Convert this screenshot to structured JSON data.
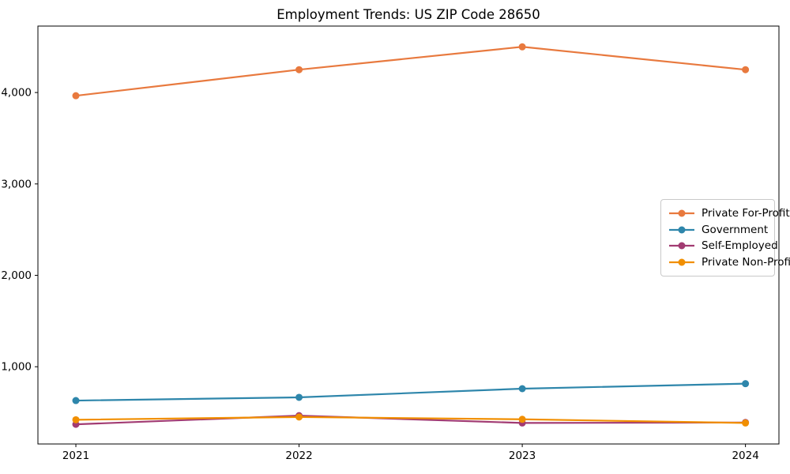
{
  "title": "Employment Trends: US ZIP Code 28650",
  "chart_data": {
    "type": "line",
    "title": "Employment Trends: US ZIP Code 28650",
    "xlabel": "",
    "ylabel": "",
    "x": [
      2021,
      2022,
      2023,
      2024
    ],
    "x_tick_labels": [
      "2021",
      "2022",
      "2023",
      "2024"
    ],
    "y_tick_values": [
      1000,
      2000,
      3000,
      4000
    ],
    "y_tick_labels": [
      "1,000",
      "2,000",
      "3,000",
      "4,000"
    ],
    "xlim": [
      2020.83,
      2024.15
    ],
    "ylim": [
      155,
      4727
    ],
    "grid": false,
    "legend_position": "center-right",
    "series": [
      {
        "name": "Private For-Profit",
        "color": "#e8793e",
        "values": [
          3965,
          4250,
          4500,
          4250
        ]
      },
      {
        "name": "Government",
        "color": "#2e86ab",
        "values": [
          630,
          665,
          760,
          815
        ]
      },
      {
        "name": "Self-Employed",
        "color": "#a23b72",
        "values": [
          370,
          465,
          385,
          390
        ]
      },
      {
        "name": "Private Non-Profit",
        "color": "#f18f01",
        "values": [
          420,
          450,
          425,
          385
        ]
      }
    ],
    "axis_color": "#000000",
    "background": "#ffffff"
  }
}
